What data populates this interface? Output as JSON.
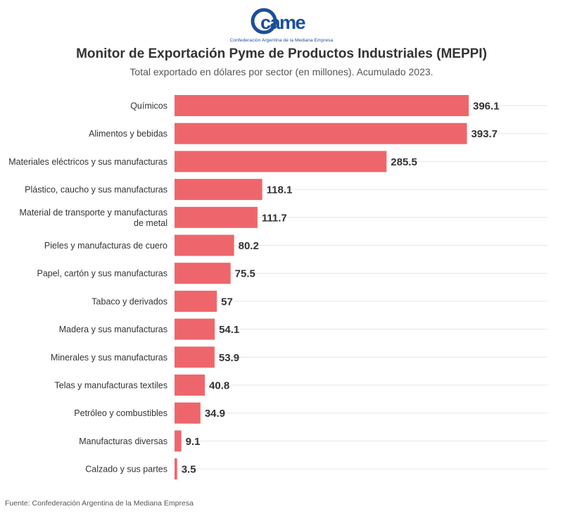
{
  "header": {
    "logo_text": "came",
    "logo_subtitle": "Confederación Argentina de la Mediana Empresa",
    "title": "Monitor de Exportación Pyme de Productos Industriales (MEPPI)",
    "subtitle": "Total exportado en dólares por sector (en millones). Acumulado 2023."
  },
  "footer": {
    "source": "Fuente: Confederación Argentina de la Mediana Empresa"
  },
  "colors": {
    "bar": "#ee666b",
    "logo": "#1a4f9c",
    "grid": "#e6e6e6"
  },
  "chart_data": {
    "type": "bar",
    "orientation": "horizontal",
    "title": "Monitor de Exportación Pyme de Productos Industriales (MEPPI)",
    "subtitle": "Total exportado en dólares por sector (en millones). Acumulado 2023.",
    "xlabel": "",
    "ylabel": "",
    "xlim": [
      0,
      396.1
    ],
    "grid": true,
    "categories": [
      [
        "Químicos"
      ],
      [
        "Alimentos y bebidas"
      ],
      [
        "Materiales eléctricos y sus manufacturas"
      ],
      [
        "Plástico, caucho y sus manufacturas"
      ],
      [
        "Material de transporte y manufacturas",
        "de metal"
      ],
      [
        "Pieles y manufacturas de cuero"
      ],
      [
        "Papel, cartón y sus manufacturas"
      ],
      [
        "Tabaco y derivados"
      ],
      [
        "Madera y sus manufacturas"
      ],
      [
        "Minerales y sus manufacturas"
      ],
      [
        "Telas y manufacturas textiles"
      ],
      [
        "Petróleo y combustibles"
      ],
      [
        "Manufacturas diversas"
      ],
      [
        "Calzado y sus partes"
      ]
    ],
    "values": [
      396.1,
      393.7,
      285.5,
      118.1,
      111.7,
      80.2,
      75.5,
      57,
      54.1,
      53.9,
      40.8,
      34.9,
      9.1,
      3.5
    ],
    "value_labels": [
      "396.1",
      "393.7",
      "285.5",
      "118.1",
      "111.7",
      "80.2",
      "75.5",
      "57",
      "54.1",
      "53.9",
      "40.8",
      "34.9",
      "9.1",
      "3.5"
    ]
  }
}
